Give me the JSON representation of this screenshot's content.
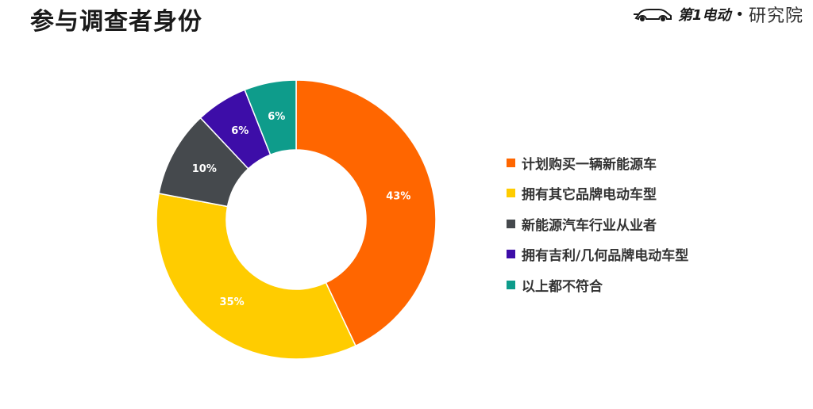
{
  "header": {
    "title": "参与调查者身份",
    "brand_logo_text": "第1电动",
    "brand_separator": "•",
    "brand_sub": "研究院"
  },
  "chart_data": {
    "type": "pie",
    "style": "donut",
    "categories": [
      "计划购买一辆新能源车",
      "拥有其它品牌电动车型",
      "新能源汽车行业从业者",
      "拥有吉利/几何品牌电动车型",
      "以上都不符合"
    ],
    "values": [
      43,
      35,
      10,
      6,
      6
    ],
    "data_labels": [
      "43%",
      "35%",
      "10%",
      "6%",
      "6%"
    ],
    "colors": [
      "#FF6600",
      "#FFCC00",
      "#45494D",
      "#3D0DA8",
      "#0E9C8B"
    ],
    "start_angle_deg": 0,
    "direction": "clockwise",
    "legend_position": "right"
  }
}
